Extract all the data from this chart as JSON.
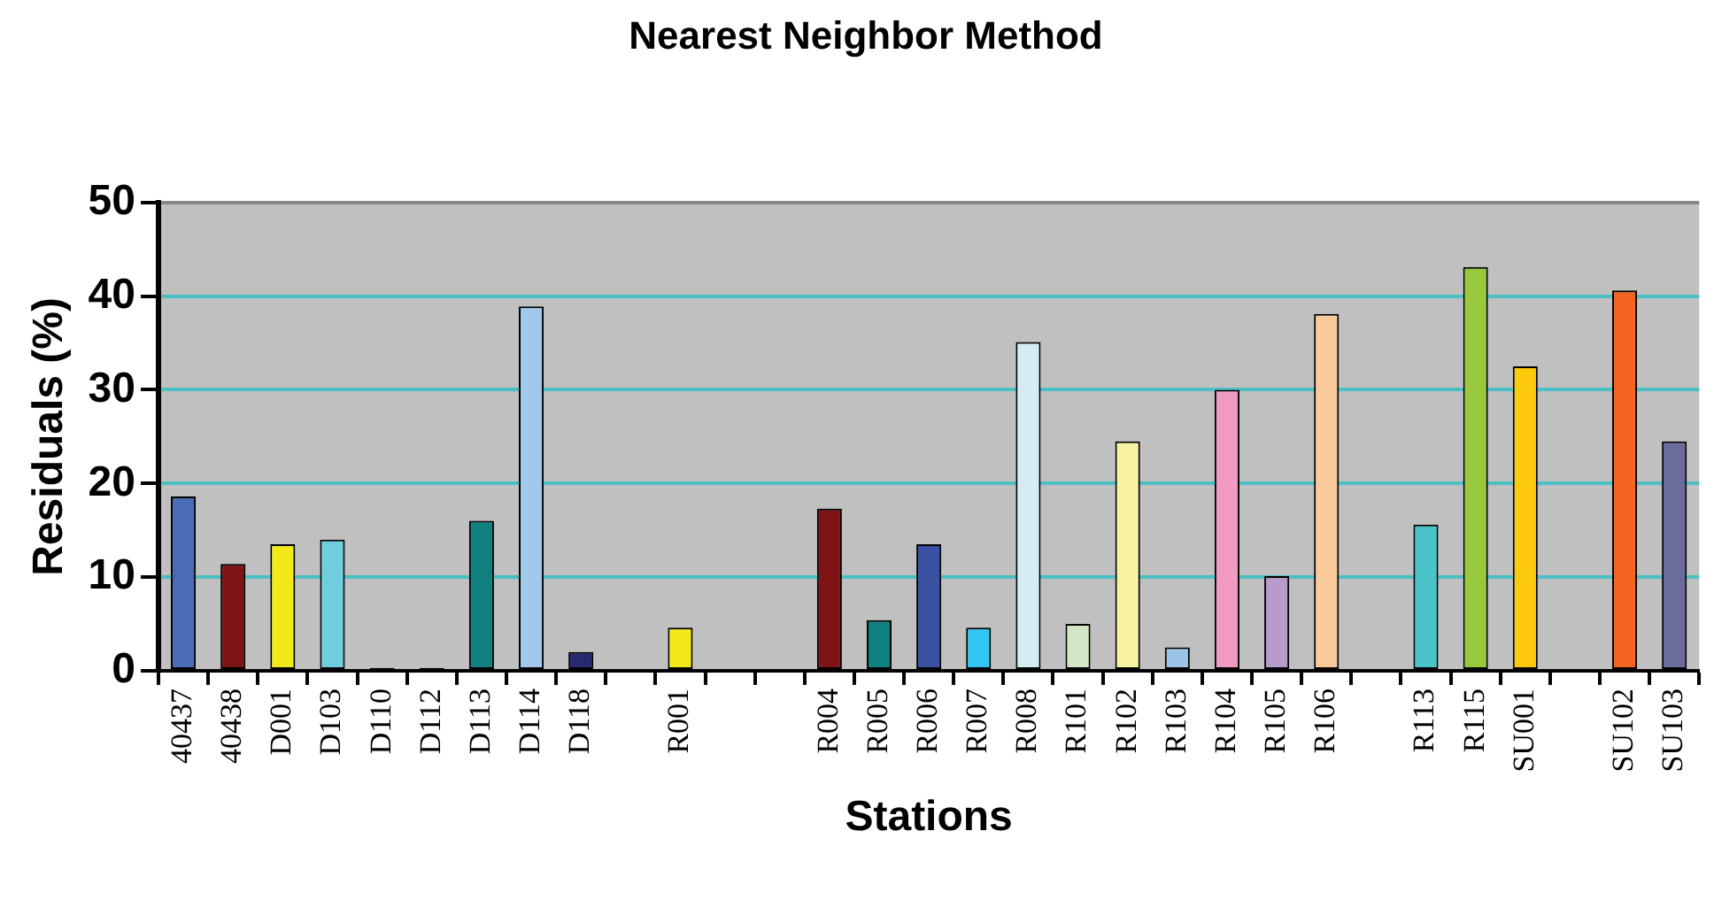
{
  "chart_data": {
    "type": "bar",
    "title": "Nearest Neighbor Method",
    "xlabel": "Stations",
    "ylabel": "Residuals (%)",
    "categories": [
      "40437",
      "40438",
      "D001",
      "D103",
      "D110",
      "D112",
      "D113",
      "D114",
      "D118",
      null,
      "R001",
      null,
      null,
      "R004",
      "R005",
      "R006",
      "R007",
      "R008",
      "R101",
      "R102",
      "R103",
      "R104",
      "R105",
      "R106",
      null,
      "R113",
      "R115",
      "SU001",
      null,
      "SU102",
      "SU103"
    ],
    "values": [
      18.6,
      11.4,
      13.5,
      14.0,
      0.3,
      0.3,
      16.0,
      38.9,
      2.0,
      null,
      4.6,
      null,
      null,
      17.3,
      5.4,
      13.5,
      4.6,
      35.1,
      5.0,
      24.5,
      2.5,
      30.0,
      10.1,
      38.1,
      null,
      15.6,
      43.1,
      32.5,
      null,
      40.6,
      24.5
    ],
    "colors": [
      "#4a6bb5",
      "#7f1416",
      "#f2e81a",
      "#70cde0",
      "#000000",
      "#000000",
      "#0e8080",
      "#a0c8ea",
      "#262b70",
      null,
      "#f2e81a",
      null,
      null,
      "#7f1416",
      "#0e8080",
      "#3950a3",
      "#34c6f2",
      "#d5ecf2",
      "#d2e6c5",
      "#f8f3a0",
      "#9bc4e8",
      "#f09ac4",
      "#b79ccb",
      "#f9c99a",
      null,
      "#49c2c8",
      "#9ac83d",
      "#fcca0a",
      null,
      "#f26522",
      "#6b6b9c"
    ],
    "ylim": [
      0,
      50
    ],
    "yticks": [
      0,
      10,
      20,
      30,
      40,
      50
    ],
    "grid": "y",
    "legend": false
  }
}
